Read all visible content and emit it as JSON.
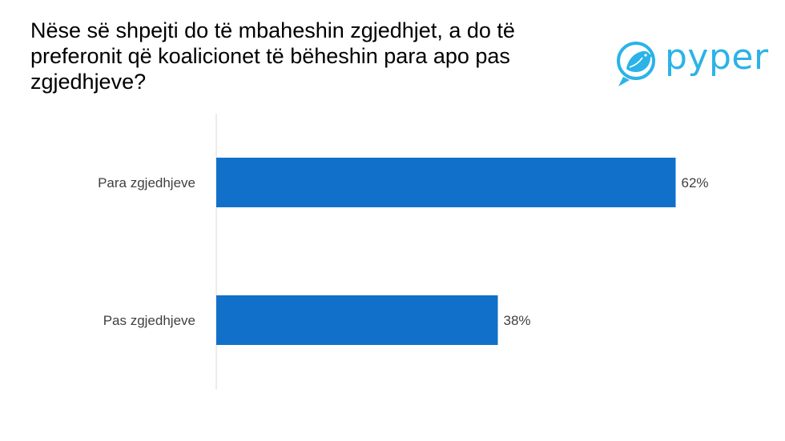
{
  "title": "Nëse së shpejti do të mbaheshin zgjedhjet, a do të preferonit që koalicionet të bëheshin para apo pas zgjedhjeve?",
  "logo": {
    "text": "pyper",
    "icon": "bird-icon",
    "color": "#2bb3e8"
  },
  "chart_data": {
    "type": "bar",
    "orientation": "horizontal",
    "categories": [
      "Para zgjedhjeve",
      "Pas zgjedhjeve"
    ],
    "values": [
      62,
      38
    ],
    "value_labels": [
      "62%",
      "38%"
    ],
    "xlim": [
      0,
      100
    ],
    "bar_color": "#1170c9",
    "grid": false
  }
}
